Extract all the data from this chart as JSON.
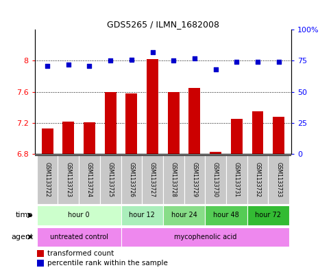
{
  "title": "GDS5265 / ILMN_1682008",
  "samples": [
    "GSM1133722",
    "GSM1133723",
    "GSM1133724",
    "GSM1133725",
    "GSM1133726",
    "GSM1133727",
    "GSM1133728",
    "GSM1133729",
    "GSM1133730",
    "GSM1133731",
    "GSM1133732",
    "GSM1133733"
  ],
  "bar_values": [
    7.13,
    7.22,
    7.21,
    7.6,
    7.58,
    8.02,
    7.6,
    7.65,
    6.83,
    7.25,
    7.35,
    7.28
  ],
  "percentile_values": [
    71,
    72,
    71,
    75,
    76,
    82,
    75,
    77,
    68,
    74,
    74,
    74
  ],
  "bar_color": "#cc0000",
  "percentile_color": "#0000cc",
  "ylim_left": [
    6.8,
    8.4
  ],
  "ylim_right": [
    0,
    100
  ],
  "yticks_left": [
    6.8,
    7.2,
    7.6,
    8.0
  ],
  "ytick_labels_left": [
    "6.8",
    "7.2",
    "7.6",
    "8"
  ],
  "yticks_right": [
    0,
    25,
    50,
    75,
    100
  ],
  "ytick_labels_right": [
    "0",
    "25",
    "50",
    "75",
    "100%"
  ],
  "time_groups": [
    {
      "label": "hour 0",
      "start": 0,
      "end": 4,
      "color": "#ccffcc"
    },
    {
      "label": "hour 12",
      "start": 4,
      "end": 6,
      "color": "#aaeebb"
    },
    {
      "label": "hour 24",
      "start": 6,
      "end": 8,
      "color": "#88dd88"
    },
    {
      "label": "hour 48",
      "start": 8,
      "end": 10,
      "color": "#55cc55"
    },
    {
      "label": "hour 72",
      "start": 10,
      "end": 12,
      "color": "#33bb33"
    }
  ],
  "agent_groups": [
    {
      "label": "untreated control",
      "start": 0,
      "end": 4,
      "color": "#ee88ee"
    },
    {
      "label": "mycophenolic acid",
      "start": 4,
      "end": 12,
      "color": "#ee88ee"
    }
  ],
  "legend_bar_label": "transformed count",
  "legend_pct_label": "percentile rank within the sample",
  "bar_width": 0.55,
  "gridlines": [
    6.8,
    7.2,
    7.6,
    8.0
  ],
  "sample_box_color": "#c8c8c8",
  "xlim": [
    -0.6,
    11.6
  ]
}
